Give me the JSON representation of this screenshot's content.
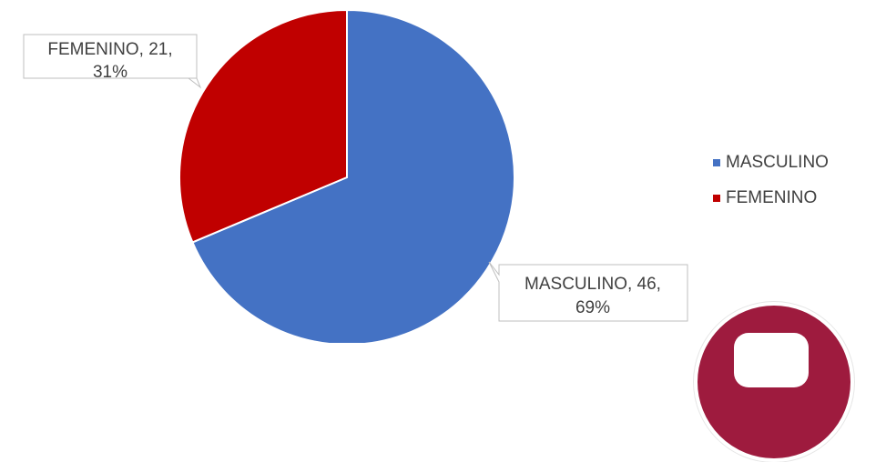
{
  "chart_data": {
    "type": "pie",
    "categories": [
      "MASCULINO",
      "FEMENINO"
    ],
    "values": [
      46,
      21
    ],
    "percentages": [
      "69%",
      "31%"
    ],
    "colors": [
      "#4472c4",
      "#c00000"
    ],
    "data_labels": [
      {
        "line1": "MASCULINO, 46,",
        "line2": "69%"
      },
      {
        "line1": "FEMENINO, 21,",
        "line2": "31%"
      }
    ],
    "legend": {
      "position": "right",
      "items": [
        {
          "label": "MASCULINO",
          "color": "#4472c4"
        },
        {
          "label": "FEMENINO",
          "color": "#c00000"
        }
      ]
    }
  }
}
